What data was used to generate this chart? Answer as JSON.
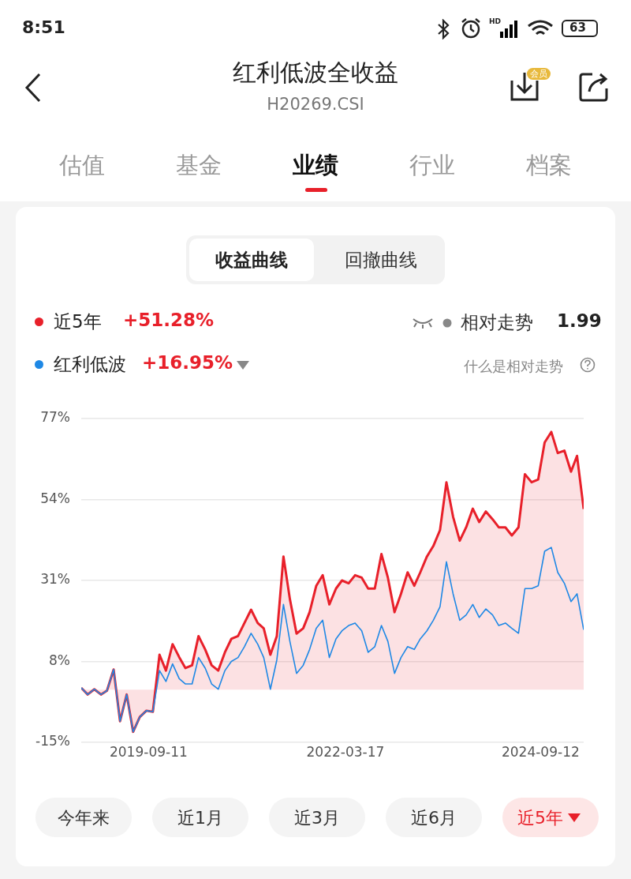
{
  "chart_data": {
    "type": "line",
    "title": "红利低波全收益",
    "subtitle": "H20269.CSI",
    "annotations": [
      "8:51",
      "63",
      "会员",
      "估值",
      "基金",
      "业绩",
      "行业",
      "档案",
      "收益曲线",
      "回撤曲线",
      "+51.28%",
      "+16.95%",
      "相对走势",
      "1.99",
      "什么是相对走势",
      "今年来",
      "近1月",
      "近3月",
      "近6月",
      "近5年",
      "HD"
    ],
    "x": [
      "2018-11",
      "2018-12",
      "2019-01",
      "2019-02",
      "2019-03",
      "2019-04",
      "2019-05",
      "2019-06",
      "2019-07",
      "2019-08",
      "2019-09",
      "2019-10",
      "2019-11",
      "2019-12",
      "2020-01",
      "2020-02",
      "2020-03",
      "2020-04",
      "2020-05",
      "2020-06",
      "2020-07",
      "2020-08",
      "2020-09",
      "2020-10",
      "2020-11",
      "2020-12",
      "2021-01",
      "2021-02",
      "2021-03",
      "2021-04",
      "2021-05",
      "2021-06",
      "2021-07",
      "2021-08",
      "2021-09",
      "2021-10",
      "2021-11",
      "2021-12",
      "2022-01",
      "2022-02",
      "2022-03",
      "2022-04",
      "2022-05",
      "2022-06",
      "2022-07",
      "2022-08",
      "2022-09",
      "2022-10",
      "2022-11",
      "2022-12",
      "2023-01",
      "2023-02",
      "2023-03",
      "2023-04",
      "2023-05",
      "2023-06",
      "2023-07",
      "2023-08",
      "2023-09",
      "2023-10",
      "2023-11",
      "2023-12",
      "2024-01",
      "2024-02",
      "2024-03",
      "2024-04",
      "2024-05",
      "2024-06",
      "2024-07",
      "2024-08",
      "2024-09",
      "2024-10",
      "2024-11",
      "2024-12",
      "2025-01",
      "2025-02",
      "2025-03",
      "2025-04"
    ],
    "series": [
      {
        "name": "近5年",
        "type": "area",
        "color": "#e8202a",
        "values": [
          0.5,
          -1.4,
          0.1,
          -1.4,
          -0.3,
          5.7,
          -9,
          -1.4,
          -12,
          -7.8,
          -6,
          -6.3,
          9.9,
          5.4,
          12.9,
          9.2,
          6.1,
          6.9,
          15.2,
          11.4,
          6.9,
          5.4,
          10.6,
          14.4,
          15.2,
          18.9,
          22.7,
          18.9,
          17.4,
          9.9,
          15.2,
          37.8,
          25.7,
          15.9,
          17.4,
          22,
          29.5,
          32.5,
          24.2,
          28.7,
          31,
          30.2,
          32.5,
          31.8,
          28.7,
          28.7,
          38.5,
          31.8,
          22,
          27.2,
          33.3,
          29.5,
          33.3,
          37.8,
          40.8,
          45.3,
          58.9,
          49.1,
          42.3,
          46.1,
          51.4,
          47.6,
          50.6,
          48.4,
          46.1,
          46.1,
          43.8,
          46.1,
          61.2,
          58.9,
          59.7,
          70.2,
          73.2,
          67.2,
          67.9,
          61.9,
          66.4,
          51.3
        ]
      },
      {
        "name": "红利低波",
        "type": "line",
        "color": "#1e88e5",
        "values": [
          0.5,
          -1.4,
          0.1,
          -1.4,
          -0.3,
          5.7,
          -9,
          -1.4,
          -12,
          -7.8,
          -6,
          -6.3,
          5.4,
          2.3,
          7.3,
          3.1,
          1.6,
          1.6,
          9.1,
          6.1,
          1.6,
          0.1,
          5.4,
          8,
          9.1,
          12.2,
          16,
          12.9,
          9.1,
          0.1,
          8.4,
          24.2,
          13.7,
          4.6,
          6.9,
          11.4,
          17.4,
          19.7,
          9.1,
          14.4,
          16.7,
          18.2,
          18.9,
          16.7,
          10.6,
          12.2,
          18.2,
          13.7,
          4.6,
          9.1,
          12.2,
          11.4,
          14.4,
          16.7,
          19.7,
          23.5,
          36.3,
          27.2,
          19.7,
          21.2,
          24.2,
          20.5,
          22.9,
          21.2,
          18.2,
          18.9,
          17.4,
          16,
          28.7,
          28.7,
          29.5,
          39.3,
          40.4,
          33.3,
          30.2,
          25,
          27.2,
          17
        ]
      }
    ],
    "xlim": [
      "2018-11",
      "2025-04"
    ],
    "xticks": [
      "2019-09-11",
      "2022-03-17",
      "2024-09-12"
    ],
    "ylim": [
      -15,
      77
    ],
    "yticks": [
      {
        "value": -15,
        "label": "-15%"
      },
      {
        "value": 8,
        "label": "8%"
      },
      {
        "value": 31,
        "label": "31%"
      },
      {
        "value": 54,
        "label": "54%"
      },
      {
        "value": 77,
        "label": "77%"
      }
    ],
    "grid": "y",
    "legend": "top left",
    "marker": "none"
  }
}
